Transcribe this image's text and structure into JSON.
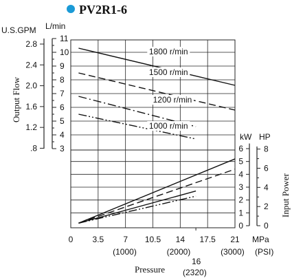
{
  "chart_data": {
    "type": "line",
    "title": "PV2R1-6",
    "title_marker_color": "#1a9ad6",
    "flow_axis": {
      "label": "Output Flow",
      "unit_gpm": "U.S.GPM",
      "unit_lmin": "L/min",
      "ticks_lmin": [
        "11",
        "10",
        "9",
        "8",
        "7",
        "6",
        "5",
        "4",
        "3"
      ],
      "ticks_gpm": [
        "2.8",
        "2.4",
        "2.0",
        "1.6",
        "1.2",
        ".8"
      ],
      "range_lmin": [
        3,
        11
      ]
    },
    "power_axis": {
      "label": "Input Power",
      "unit_kw": "kW",
      "unit_hp": "HP",
      "ticks_kw": [
        "6",
        "5",
        "4",
        "3",
        "2",
        "1",
        "0"
      ],
      "ticks_hp": [
        "8",
        "6",
        "4",
        "2",
        "0"
      ],
      "range_kw": [
        0,
        6.4
      ]
    },
    "pressure_axis": {
      "label": "Pressure",
      "unit_mpa": "MPa",
      "unit_psi": "(PSI)",
      "ticks_mpa": [
        "0",
        "3.5",
        "7",
        "10.5",
        "14",
        "17.5",
        "21"
      ],
      "ticks_psi": [
        "(1000)",
        "(2000)",
        "(3000)"
      ],
      "extra_tick_mpa": "16",
      "extra_tick_psi": "(2320)",
      "range_mpa": [
        0,
        21
      ]
    },
    "flow_series": [
      {
        "name": "1800 r/min",
        "style": "solid",
        "x": [
          1,
          21
        ],
        "y": [
          10.3,
          7.6
        ]
      },
      {
        "name": "1500 r/min",
        "style": "dashed",
        "x": [
          1,
          21
        ],
        "y": [
          8.5,
          5.8
        ]
      },
      {
        "name": "1200 r/min",
        "style": "dashdot",
        "x": [
          1,
          16
        ],
        "y": [
          6.8,
          4.6
        ]
      },
      {
        "name": "1000 r/min",
        "style": "dashdotdot",
        "x": [
          1,
          16
        ],
        "y": [
          5.5,
          3.7
        ]
      }
    ],
    "power_series": [
      {
        "name": "1800 r/min",
        "style": "solid",
        "x": [
          1,
          21
        ],
        "y": [
          0.2,
          5.2
        ]
      },
      {
        "name": "1500 r/min",
        "style": "dashed",
        "x": [
          1,
          21
        ],
        "y": [
          0.2,
          4.4
        ]
      },
      {
        "name": "1200 r/min",
        "style": "solid",
        "x": [
          1,
          16
        ],
        "y": [
          0.2,
          2.7
        ]
      },
      {
        "name": "1000 r/min",
        "style": "dashdotdot",
        "x": [
          1,
          16
        ],
        "y": [
          0.2,
          2.3
        ]
      }
    ]
  }
}
